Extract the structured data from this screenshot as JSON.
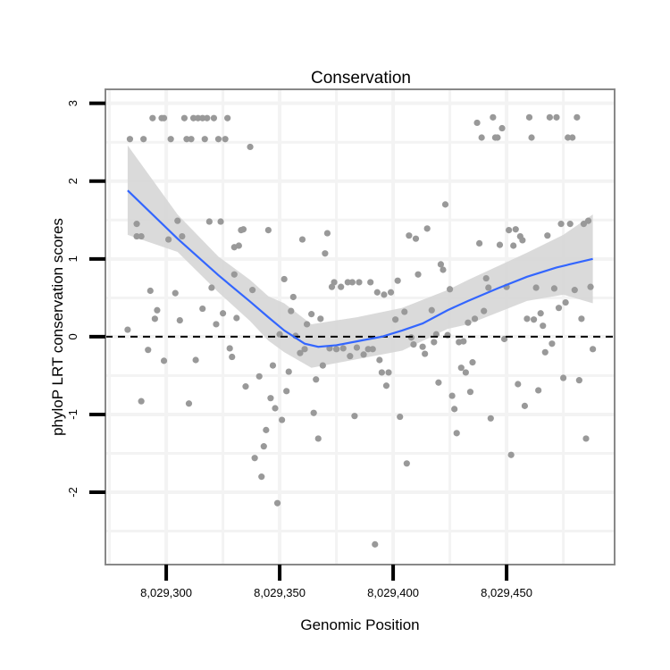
{
  "chart_data": {
    "type": "scatter",
    "title": "Conservation",
    "xlabel": "Genomic Position",
    "ylabel": "phyloP LRT conservation scores",
    "xlim": [
      8029273.2,
      8029497.6
    ],
    "ylim": [
      -2.93,
      3.18
    ],
    "x_ticks": [
      8029300,
      8029350,
      8029400,
      8029450
    ],
    "x_tick_labels": [
      "8,029,300",
      "8,029,350",
      "8,029,400",
      "8,029,450"
    ],
    "y_ticks": [
      -2,
      -1,
      0,
      1,
      2,
      3
    ],
    "y_tick_labels": [
      "-2",
      "-1",
      "0",
      "1",
      "2",
      "3"
    ],
    "grid": true,
    "reference_line": {
      "y": 0,
      "style": "dashed",
      "color": "#000000"
    },
    "colors": {
      "points": "#999999",
      "smooth": "#3366FF",
      "band": "#d6d6d6",
      "border": "#888888"
    },
    "points": [
      [
        8029294,
        2.81
      ],
      [
        8029298,
        2.81
      ],
      [
        8029299,
        2.81
      ],
      [
        8029308,
        2.81
      ],
      [
        8029312,
        2.81
      ],
      [
        8029314,
        2.81
      ],
      [
        8029316,
        2.81
      ],
      [
        8029318,
        2.81
      ],
      [
        8029321,
        2.81
      ],
      [
        8029327,
        2.81
      ],
      [
        8029284,
        2.54
      ],
      [
        8029290,
        2.54
      ],
      [
        8029302,
        2.54
      ],
      [
        8029309,
        2.54
      ],
      [
        8029311,
        2.54
      ],
      [
        8029317,
        2.54
      ],
      [
        8029323,
        2.54
      ],
      [
        8029326,
        2.54
      ],
      [
        8029337,
        2.44
      ],
      [
        8029287,
        1.45
      ],
      [
        8029305,
        1.49
      ],
      [
        8029319,
        1.48
      ],
      [
        8029324,
        1.48
      ],
      [
        8029287,
        1.29
      ],
      [
        8029289,
        1.29
      ],
      [
        8029301,
        1.25
      ],
      [
        8029307,
        1.29
      ],
      [
        8029333,
        1.37
      ],
      [
        8029334,
        1.38
      ],
      [
        8029330,
        1.15
      ],
      [
        8029332,
        1.17
      ],
      [
        8029345,
        1.37
      ],
      [
        8029330,
        0.8
      ],
      [
        8029320,
        0.63
      ],
      [
        8029338,
        0.6
      ],
      [
        8029352,
        0.74
      ],
      [
        8029293,
        0.59
      ],
      [
        8029304,
        0.56
      ],
      [
        8029296,
        0.34
      ],
      [
        8029295,
        0.23
      ],
      [
        8029306,
        0.21
      ],
      [
        8029316,
        0.36
      ],
      [
        8029325,
        0.3
      ],
      [
        8029322,
        0.16
      ],
      [
        8029331,
        0.24
      ],
      [
        8029283,
        0.09
      ],
      [
        8029350,
        0.03
      ],
      [
        8029292,
        -0.17
      ],
      [
        8029299,
        -0.31
      ],
      [
        8029313,
        -0.3
      ],
      [
        8029328,
        -0.15
      ],
      [
        8029329,
        -0.26
      ],
      [
        8029347,
        -0.37
      ],
      [
        8029341,
        -0.51
      ],
      [
        8029335,
        -0.64
      ],
      [
        8029289,
        -0.83
      ],
      [
        8029310,
        -0.86
      ],
      [
        8029346,
        -0.79
      ],
      [
        8029348,
        -0.92
      ],
      [
        8029351,
        -1.07
      ],
      [
        8029344,
        -1.2
      ],
      [
        8029343,
        -1.41
      ],
      [
        8029339,
        -1.56
      ],
      [
        8029342,
        -1.8
      ],
      [
        8029349,
        -2.14
      ],
      [
        8029360,
        1.25
      ],
      [
        8029371,
        1.33
      ],
      [
        8029370,
        1.07
      ],
      [
        8029356,
        0.51
      ],
      [
        8029355,
        0.33
      ],
      [
        8029364,
        0.29
      ],
      [
        8029362,
        0.16
      ],
      [
        8029368,
        0.23
      ],
      [
        8029357,
        0.01
      ],
      [
        8029359,
        -0.21
      ],
      [
        8029361,
        -0.16
      ],
      [
        8029369,
        -0.37
      ],
      [
        8029354,
        -0.45
      ],
      [
        8029366,
        -0.55
      ],
      [
        8029353,
        -0.7
      ],
      [
        8029365,
        -0.98
      ],
      [
        8029367,
        -1.31
      ],
      [
        8029374,
        0.7
      ],
      [
        8029373,
        0.64
      ],
      [
        8029377,
        0.64
      ],
      [
        8029380,
        0.7
      ],
      [
        8029382,
        0.7
      ],
      [
        8029385,
        0.7
      ],
      [
        8029390,
        0.7
      ],
      [
        8029393,
        0.57
      ],
      [
        8029396,
        0.54
      ],
      [
        8029399,
        0.57
      ],
      [
        8029402,
        0.72
      ],
      [
        8029407,
        1.3
      ],
      [
        8029410,
        1.26
      ],
      [
        8029415,
        1.39
      ],
      [
        8029411,
        0.8
      ],
      [
        8029421,
        0.93
      ],
      [
        8029422,
        0.86
      ],
      [
        8029405,
        0.32
      ],
      [
        8029401,
        0.22
      ],
      [
        8029417,
        0.34
      ],
      [
        8029372,
        -0.15
      ],
      [
        8029375,
        -0.16
      ],
      [
        8029378,
        -0.15
      ],
      [
        8029381,
        -0.25
      ],
      [
        8029384,
        -0.14
      ],
      [
        8029387,
        -0.23
      ],
      [
        8029389,
        -0.16
      ],
      [
        8029391,
        -0.16
      ],
      [
        8029394,
        -0.3
      ],
      [
        8029395,
        -0.46
      ],
      [
        8029398,
        -0.46
      ],
      [
        8029397,
        -0.63
      ],
      [
        8029383,
        -1.02
      ],
      [
        8029403,
        -1.03
      ],
      [
        8029406,
        -1.63
      ],
      [
        8029392,
        -2.67
      ],
      [
        8029408,
        -0.01
      ],
      [
        8029409,
        -0.1
      ],
      [
        8029413,
        -0.13
      ],
      [
        8029414,
        -0.22
      ],
      [
        8029418,
        -0.07
      ],
      [
        8029419,
        0.03
      ],
      [
        8029420,
        -0.59
      ],
      [
        8029437,
        2.75
      ],
      [
        8029444,
        2.82
      ],
      [
        8029448,
        2.68
      ],
      [
        8029439,
        2.56
      ],
      [
        8029445,
        2.56
      ],
      [
        8029446,
        2.56
      ],
      [
        8029460,
        2.82
      ],
      [
        8029461,
        2.56
      ],
      [
        8029469,
        2.82
      ],
      [
        8029472,
        2.82
      ],
      [
        8029481,
        2.82
      ],
      [
        8029477,
        2.56
      ],
      [
        8029479,
        2.56
      ],
      [
        8029423,
        1.7
      ],
      [
        8029438,
        1.2
      ],
      [
        8029447,
        1.18
      ],
      [
        8029451,
        1.37
      ],
      [
        8029454,
        1.38
      ],
      [
        8029456,
        1.29
      ],
      [
        8029457,
        1.24
      ],
      [
        8029453,
        1.17
      ],
      [
        8029468,
        1.3
      ],
      [
        8029474,
        1.45
      ],
      [
        8029478,
        1.45
      ],
      [
        8029484,
        1.45
      ],
      [
        8029486,
        1.49
      ],
      [
        8029425,
        0.61
      ],
      [
        8029441,
        0.75
      ],
      [
        8029442,
        0.63
      ],
      [
        8029450,
        0.64
      ],
      [
        8029463,
        0.63
      ],
      [
        8029471,
        0.62
      ],
      [
        8029480,
        0.6
      ],
      [
        8029487,
        0.64
      ],
      [
        8029440,
        0.33
      ],
      [
        8029436,
        0.23
      ],
      [
        8029433,
        0.18
      ],
      [
        8029459,
        0.23
      ],
      [
        8029462,
        0.22
      ],
      [
        8029465,
        0.3
      ],
      [
        8029466,
        0.14
      ],
      [
        8029473,
        0.37
      ],
      [
        8029476,
        0.44
      ],
      [
        8029483,
        0.23
      ],
      [
        8029424,
        0.02
      ],
      [
        8029429,
        -0.07
      ],
      [
        8029431,
        -0.06
      ],
      [
        8029449,
        -0.03
      ],
      [
        8029470,
        -0.09
      ],
      [
        8029467,
        -0.2
      ],
      [
        8029488,
        -0.16
      ],
      [
        8029430,
        -0.4
      ],
      [
        8029432,
        -0.46
      ],
      [
        8029435,
        -0.33
      ],
      [
        8029426,
        -0.76
      ],
      [
        8029427,
        -0.93
      ],
      [
        8029434,
        -0.71
      ],
      [
        8029428,
        -1.24
      ],
      [
        8029443,
        -1.05
      ],
      [
        8029455,
        -0.61
      ],
      [
        8029458,
        -0.89
      ],
      [
        8029464,
        -0.69
      ],
      [
        8029475,
        -0.53
      ],
      [
        8029482,
        -0.56
      ],
      [
        8029452,
        -1.52
      ],
      [
        8029485,
        -1.31
      ]
    ],
    "smooth": {
      "x": [
        8029283,
        8029305,
        8029323,
        8029337,
        8029345,
        8029352,
        8029361,
        8029367,
        8029375,
        8029384,
        8029395,
        8029404,
        8029413,
        8029424,
        8029433,
        8029446,
        8029459,
        8029472,
        8029488
      ],
      "y": [
        1.88,
        1.26,
        0.79,
        0.45,
        0.25,
        0.08,
        -0.09,
        -0.13,
        -0.11,
        -0.06,
        0.0,
        0.08,
        0.17,
        0.34,
        0.46,
        0.62,
        0.77,
        0.89,
        1.0
      ]
    },
    "band": {
      "x": [
        8029283,
        8029305,
        8029323,
        8029337,
        8029345,
        8029352,
        8029364,
        8029384,
        8029404,
        8029424,
        8029433,
        8029459,
        8029475,
        8029488
      ],
      "upper": [
        2.46,
        1.57,
        1.03,
        0.73,
        0.52,
        0.43,
        0.16,
        0.25,
        0.37,
        0.6,
        0.73,
        1.08,
        1.31,
        1.57
      ],
      "lower": [
        1.31,
        1.09,
        0.57,
        0.2,
        -0.05,
        -0.2,
        -0.4,
        -0.29,
        -0.18,
        0.1,
        0.16,
        0.46,
        0.54,
        0.43
      ]
    }
  }
}
